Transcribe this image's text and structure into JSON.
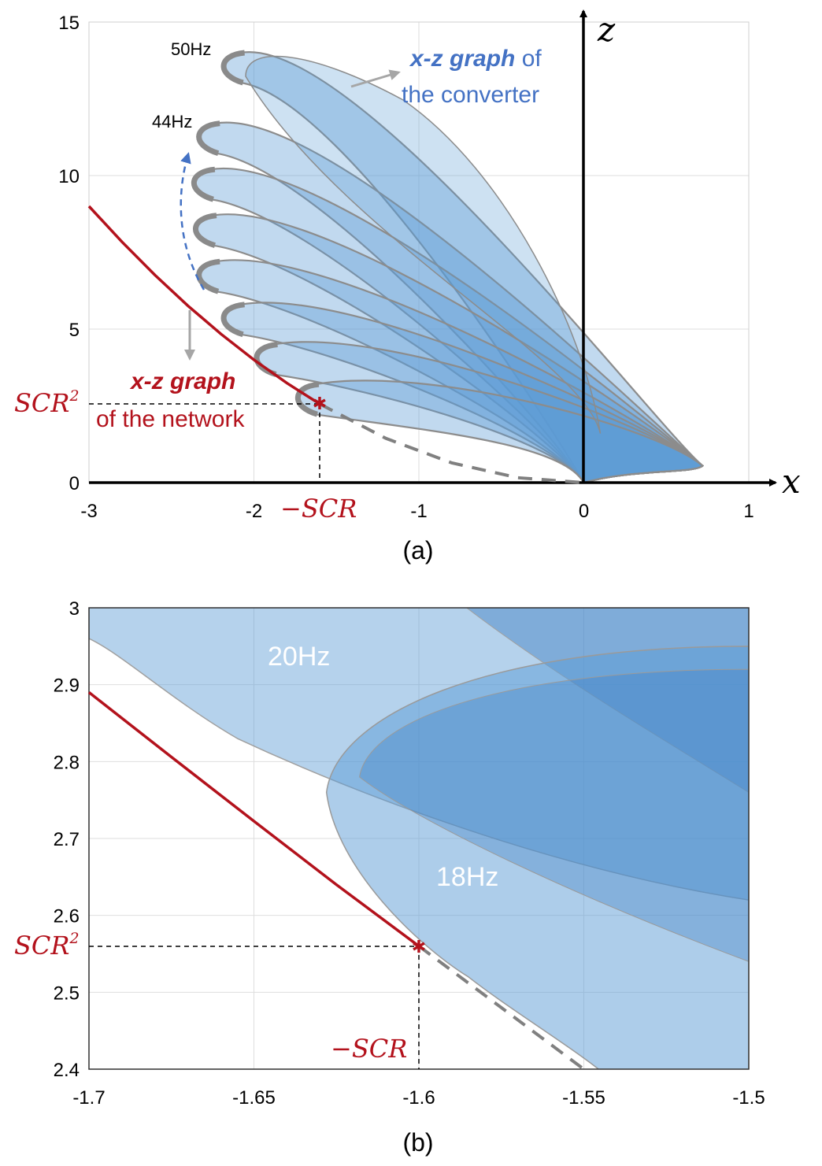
{
  "chart_data": [
    {
      "type": "line",
      "panel_label": "(a)",
      "x_range": [
        -3,
        1
      ],
      "y_range": [
        0,
        15
      ],
      "x_ticks": [
        -3,
        -2,
        -1,
        0,
        1
      ],
      "y_ticks": [
        0,
        5,
        10,
        15
      ],
      "x_tick_labels": [
        "-3",
        "-2",
        "-1",
        "0",
        "1"
      ],
      "y_tick_labels": [
        "0",
        "5",
        "10",
        "15"
      ],
      "grid": true,
      "axis_x_symbol": "x",
      "axis_z_symbol": "z",
      "scr": 1.6,
      "scr_squared": 2.56,
      "network_curve": {
        "name": "x-z graph of the network",
        "x": [
          -3.0,
          -2.8,
          -2.6,
          -2.4,
          -2.2,
          -2.0,
          -1.8,
          -1.6
        ],
        "z": [
          9.0,
          7.84,
          6.76,
          5.76,
          4.84,
          4.0,
          3.24,
          2.56
        ]
      },
      "continuation_curve_dashed": {
        "x": [
          -1.6,
          -1.2,
          -0.8,
          -0.4,
          0.0
        ],
        "z": [
          2.56,
          1.44,
          0.64,
          0.16,
          0.0
        ]
      },
      "converter_lobes": [
        {
          "label": "50Hz",
          "top_z": 14.0,
          "left_x": -2.2
        },
        {
          "label": "44Hz",
          "top_z": 11.7,
          "left_x": -2.35
        },
        {
          "label": "",
          "top_z": 10.2,
          "left_x": -2.38
        },
        {
          "label": "",
          "top_z": 8.7,
          "left_x": -2.37
        },
        {
          "label": "",
          "top_z": 7.2,
          "left_x": -2.35
        },
        {
          "label": "",
          "top_z": 5.8,
          "left_x": -2.2
        },
        {
          "label": "",
          "top_z": 4.5,
          "left_x": -2.0
        },
        {
          "label": "",
          "top_z": 3.2,
          "left_x": -1.75
        }
      ],
      "annotations": {
        "converter_title_bold": "x-z graph",
        "converter_title_rest": " of",
        "converter_title_line2": "the converter",
        "network_title_bold": "x-z graph",
        "network_title_line2": "of the network",
        "scr_sq_label": "SCR",
        "scr_label": "−SCR",
        "freq_top": "50Hz",
        "freq_second": "44Hz"
      }
    },
    {
      "type": "line",
      "panel_label": "(b)",
      "x_range": [
        -1.7,
        -1.5
      ],
      "y_range": [
        2.4,
        3.0
      ],
      "x_ticks": [
        -1.7,
        -1.65,
        -1.6,
        -1.55,
        -1.5
      ],
      "y_ticks": [
        2.4,
        2.5,
        2.6,
        2.7,
        2.8,
        2.9,
        3.0
      ],
      "x_tick_labels": [
        "-1.7",
        "-1.65",
        "-1.6",
        "-1.55",
        "-1.5"
      ],
      "y_tick_labels": [
        "2.4",
        "2.5",
        "2.6",
        "2.7",
        "2.8",
        "2.9",
        "3"
      ],
      "grid": true,
      "network_curve": {
        "x": [
          -1.7,
          -1.675,
          -1.65,
          -1.625,
          -1.6
        ],
        "z": [
          2.89,
          2.806,
          2.7225,
          2.64,
          2.56
        ]
      },
      "continuation_curve_dashed": {
        "x": [
          -1.6,
          -1.575,
          -1.55
        ],
        "z": [
          2.56,
          2.48,
          2.4
        ]
      },
      "annotations": {
        "label_20hz": "20Hz",
        "label_18hz": "18Hz",
        "scr_sq_label": "SCR",
        "scr_label": "−SCR"
      }
    }
  ],
  "colors": {
    "network_red": "#b3121c",
    "converter_blue": "#4472c4",
    "lobe_fill": "#5b9bd5",
    "lobe_edge": "#8c8c8c",
    "grid": "#dedede",
    "axis": "#000000"
  }
}
